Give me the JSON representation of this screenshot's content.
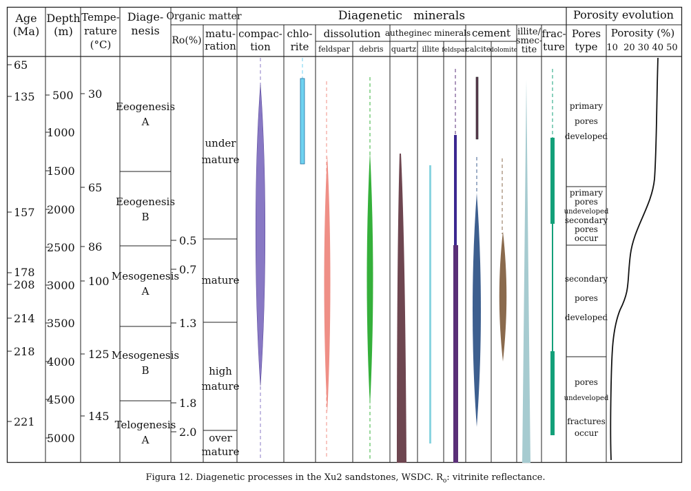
{
  "headers": {
    "age": [
      "Age",
      "(Ma)"
    ],
    "depth": [
      "Depth",
      "(m)"
    ],
    "temperature": [
      "Tempe-",
      "rature",
      "(°C)"
    ],
    "diagenesis": [
      "Diage-",
      "nesis"
    ],
    "organic_matter": "Organic matter",
    "ro": "Ro(%)",
    "maturation": [
      "matu-",
      "ration"
    ],
    "diagenetic_minerals": "Diagenetic   minerals",
    "compaction": [
      "compac-",
      "tion"
    ],
    "chlorite": [
      "chlo-",
      "rite"
    ],
    "dissolution": "dissolution",
    "dissolution_feldspar": "feldspar",
    "dissolution_debris": "debris",
    "authigenic": "autheginec minerals",
    "auth_quartz": "quartz",
    "auth_illite": "illite",
    "auth_feldspar": "feldspar",
    "cement": "cement",
    "cement_calcite": "calcite",
    "cement_dolomite": "dolomite",
    "illite_smectite": [
      "illite/",
      "smec-",
      "tite"
    ],
    "fracture": [
      "frac-",
      "ture"
    ],
    "porosity_evolution": "Porosity evolution",
    "pores_type": [
      "Pores",
      "type"
    ],
    "porosity": "Porosity (%)",
    "porosity_ticks": "10  20 30 40 50"
  },
  "ages": [
    "65",
    "135",
    "157",
    "178",
    "208",
    "214",
    "218",
    "221"
  ],
  "depths": [
    "500",
    "1000",
    "1500",
    "2000",
    "2500",
    "3000",
    "3500",
    "4000",
    "4500",
    "5000"
  ],
  "temperatures": [
    "30",
    "65",
    "86",
    "100",
    "125",
    "145"
  ],
  "diagenesis_stages": [
    [
      "Eeogenesis",
      "A"
    ],
    [
      "Eeogenesis",
      "B"
    ],
    [
      "Mesogenesis",
      "A"
    ],
    [
      "Mesogenesis",
      "B"
    ],
    [
      "Telogenesis",
      "A"
    ]
  ],
  "ro_values": [
    "0.5",
    "0.7",
    "1.3",
    "1.8",
    "2.0"
  ],
  "maturation_stages": [
    [
      "under",
      "mature"
    ],
    [
      "mature"
    ],
    [
      "high",
      "mature"
    ],
    [
      "over",
      "mature"
    ]
  ],
  "pore_stages": [
    [
      "primary",
      "pores",
      "developed"
    ],
    [
      "primary",
      "pores",
      "undeveloped",
      "secondary",
      "pores",
      "occur"
    ],
    [
      "secondary",
      "pores",
      "developed"
    ],
    [
      "pores",
      "undeveloped",
      "fractures",
      "occur"
    ]
  ],
  "colors": {
    "compaction": "#8878c4",
    "chlorite": "#6fd2f0",
    "feldspar_dissolution": "#ef8f86",
    "debris_dissolution": "#35b03a",
    "quartz": "#6e4650",
    "illite": "#8ad4e0",
    "auth_feldspar": "#5a2f78",
    "calcite": "#3d5f8f",
    "dolomite": "#8a6a4d",
    "illite_smectite": "#a6cbd0",
    "fracture": "#13a079"
  },
  "caption": {
    "prefix": "Figura 12. Diagenetic processes in the Xu2 sandstones, WSDC. R",
    "subscript": "o",
    "suffix": ": vitrinite reflectance."
  }
}
